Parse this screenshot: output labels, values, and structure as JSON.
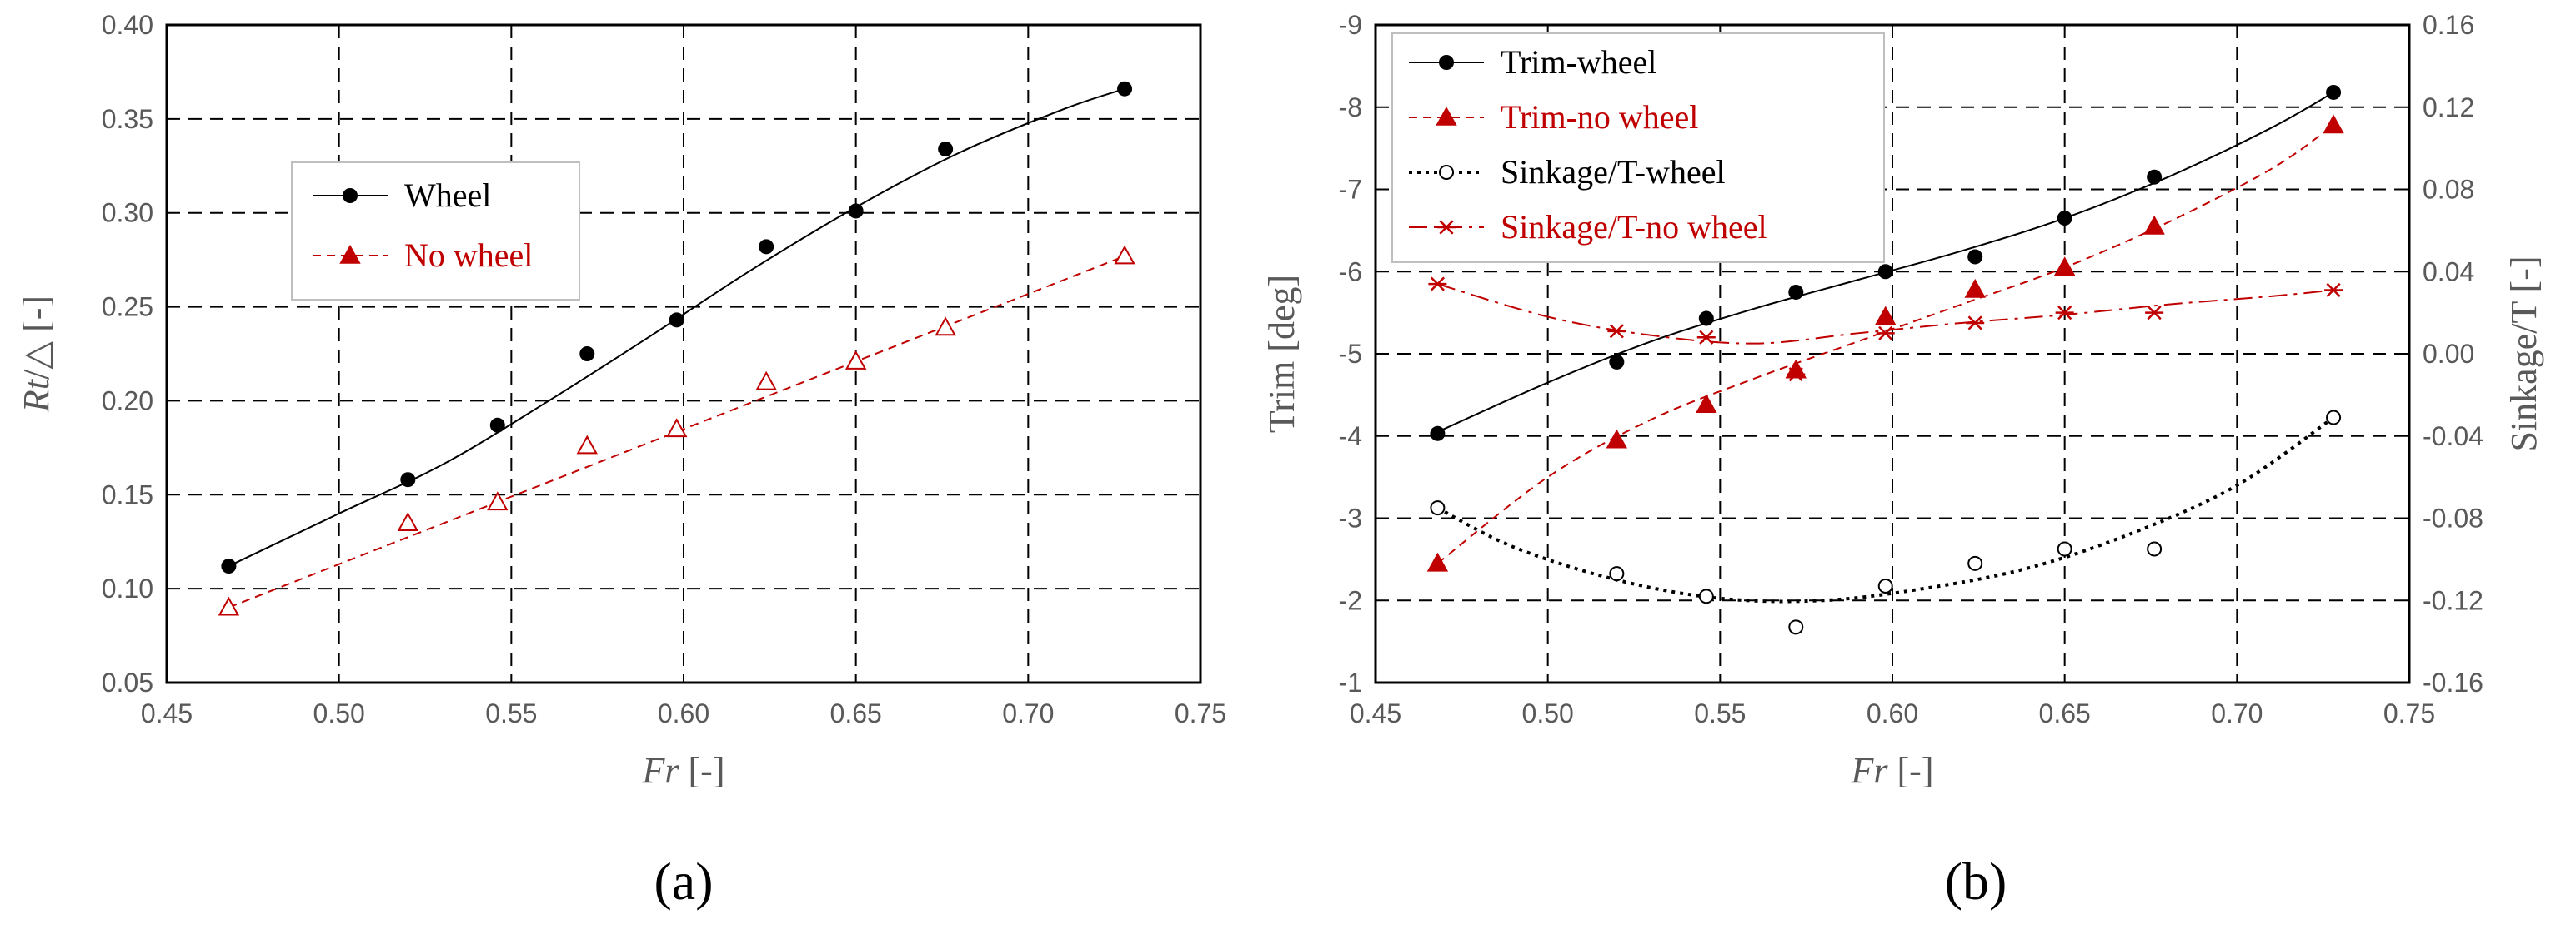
{
  "colors": {
    "black": "#000000",
    "red": "#c00000",
    "tick": "#595959"
  },
  "chart_data": [
    {
      "panel": "(a)",
      "type": "line",
      "xlabel": {
        "italic": "Fr",
        "normal": " [-]"
      },
      "ylabel": {
        "italic": "Rt",
        "normal": "/△ [-]"
      },
      "xlim": [
        0.45,
        0.75
      ],
      "ylim": [
        0.05,
        0.4
      ],
      "x_ticks": [
        "0.45",
        "0.50",
        "0.55",
        "0.60",
        "0.65",
        "0.70",
        "0.75"
      ],
      "y_ticks": [
        "0.05",
        "0.10",
        "0.15",
        "0.20",
        "0.25",
        "0.30",
        "0.35",
        "0.40"
      ],
      "legend": [
        {
          "name": "Wheel",
          "color": "#000000",
          "marker": "filled-circle",
          "line": "solid"
        },
        {
          "name": "No wheel",
          "color": "#c00000",
          "marker": "filled-triangle",
          "line": "dashed"
        }
      ],
      "series": [
        {
          "name": "Wheel",
          "axis": "left",
          "color": "#000000",
          "marker": "filled-circle",
          "x": [
            0.468,
            0.52,
            0.546,
            0.572,
            0.598,
            0.624,
            0.65,
            0.676,
            0.728
          ],
          "y": [
            0.112,
            0.158,
            0.187,
            0.225,
            0.243,
            0.282,
            0.301,
            0.334,
            0.366
          ],
          "fit_x": [
            0.468,
            0.5,
            0.53,
            0.56,
            0.59,
            0.62,
            0.65,
            0.68,
            0.71,
            0.728
          ],
          "fit_y": [
            0.112,
            0.14,
            0.166,
            0.199,
            0.234,
            0.27,
            0.303,
            0.332,
            0.355,
            0.366
          ],
          "fit_style": "solid"
        },
        {
          "name": "No wheel",
          "axis": "left",
          "color": "#c00000",
          "marker": "open-triangle",
          "x": [
            0.468,
            0.52,
            0.546,
            0.572,
            0.598,
            0.624,
            0.65,
            0.676,
            0.728
          ],
          "y": [
            0.09,
            0.135,
            0.146,
            0.176,
            0.185,
            0.21,
            0.221,
            0.239,
            0.277
          ],
          "fit_x": [
            0.468,
            0.728
          ],
          "fit_y": [
            0.09,
            0.277
          ],
          "fit_style": "dashed"
        }
      ]
    },
    {
      "panel": "(b)",
      "type": "line",
      "xlabel": {
        "italic": "Fr",
        "normal": " [-]"
      },
      "ylabel": "Trim [deg]",
      "y2label": "Sinkage/T [-]",
      "xlim": [
        0.45,
        0.75
      ],
      "ylim": [
        -1,
        -9
      ],
      "y2lim": [
        -0.16,
        0.16
      ],
      "x_ticks": [
        "0.45",
        "0.50",
        "0.55",
        "0.60",
        "0.65",
        "0.70",
        "0.75"
      ],
      "y_ticks": [
        "-1",
        "-2",
        "-3",
        "-4",
        "-5",
        "-6",
        "-7",
        "-8",
        "-9"
      ],
      "y2_ticks": [
        "-0.16",
        "-0.12",
        "-0.08",
        "-0.04",
        "0.00",
        "0.04",
        "0.08",
        "0.12",
        "0.16"
      ],
      "legend": [
        {
          "name": "Trim-wheel",
          "color": "#000000",
          "marker": "filled-circle",
          "line": "solid"
        },
        {
          "name": "Trim-no wheel",
          "color": "#c00000",
          "marker": "filled-triangle",
          "line": "dashed"
        },
        {
          "name": "Sinkage/T-wheel",
          "color": "#000000",
          "marker": "open-circle",
          "line": "dotted"
        },
        {
          "name": "Sinkage/T-no wheel",
          "color": "#c00000",
          "marker": "star",
          "line": "dashdot"
        }
      ],
      "series": [
        {
          "name": "Trim-wheel",
          "axis": "left",
          "color": "#000000",
          "marker": "filled-circle",
          "x": [
            0.468,
            0.52,
            0.546,
            0.572,
            0.598,
            0.624,
            0.65,
            0.676,
            0.728
          ],
          "y": [
            -4.03,
            -4.9,
            -5.43,
            -5.75,
            -6.0,
            -6.18,
            -6.65,
            -7.15,
            -8.18
          ],
          "fit_x": [
            0.468,
            0.5,
            0.53,
            0.56,
            0.59,
            0.62,
            0.65,
            0.68,
            0.71,
            0.728
          ],
          "fit_y": [
            -4.05,
            -4.65,
            -5.15,
            -5.55,
            -5.9,
            -6.25,
            -6.65,
            -7.15,
            -7.75,
            -8.18
          ],
          "fit_style": "solid"
        },
        {
          "name": "Trim-no wheel",
          "axis": "left",
          "color": "#c00000",
          "marker": "filled-triangle",
          "x": [
            0.468,
            0.52,
            0.546,
            0.572,
            0.598,
            0.624,
            0.65,
            0.676,
            0.728
          ],
          "y": [
            -2.45,
            -3.95,
            -4.38,
            -4.8,
            -5.45,
            -5.78,
            -6.05,
            -6.55,
            -7.78
          ],
          "fit_x": [
            0.468,
            0.5,
            0.53,
            0.56,
            0.59,
            0.62,
            0.65,
            0.68,
            0.71,
            0.728
          ],
          "fit_y": [
            -2.45,
            -3.5,
            -4.2,
            -4.7,
            -5.15,
            -5.6,
            -6.05,
            -6.6,
            -7.25,
            -7.78
          ],
          "fit_style": "dashed"
        },
        {
          "name": "Sinkage/T-wheel",
          "axis": "right",
          "color": "#000000",
          "marker": "open-circle",
          "x": [
            0.468,
            0.52,
            0.546,
            0.572,
            0.598,
            0.624,
            0.65,
            0.676,
            0.728
          ],
          "y": [
            -0.075,
            -0.107,
            -0.118,
            -0.133,
            -0.113,
            -0.102,
            -0.095,
            -0.095,
            -0.031
          ],
          "fit_x": [
            0.468,
            0.49,
            0.52,
            0.55,
            0.58,
            0.61,
            0.64,
            0.67,
            0.7,
            0.728
          ],
          "fit_y": [
            -0.075,
            -0.094,
            -0.11,
            -0.119,
            -0.12,
            -0.114,
            -0.104,
            -0.087,
            -0.064,
            -0.031
          ],
          "fit_style": "dotted"
        },
        {
          "name": "Sinkage/T-no wheel",
          "axis": "right",
          "color": "#c00000",
          "marker": "star",
          "x": [
            0.468,
            0.52,
            0.546,
            0.572,
            0.598,
            0.624,
            0.65,
            0.676,
            0.728
          ],
          "y": [
            0.034,
            0.011,
            0.008,
            -0.01,
            0.01,
            0.015,
            0.02,
            0.02,
            0.031
          ],
          "fit_x": [
            0.468,
            0.5,
            0.53,
            0.56,
            0.59,
            0.62,
            0.65,
            0.68,
            0.71,
            0.728
          ],
          "fit_y": [
            0.034,
            0.018,
            0.009,
            0.005,
            0.01,
            0.015,
            0.019,
            0.024,
            0.028,
            0.031
          ],
          "fit_style": "dashdot"
        }
      ]
    }
  ]
}
